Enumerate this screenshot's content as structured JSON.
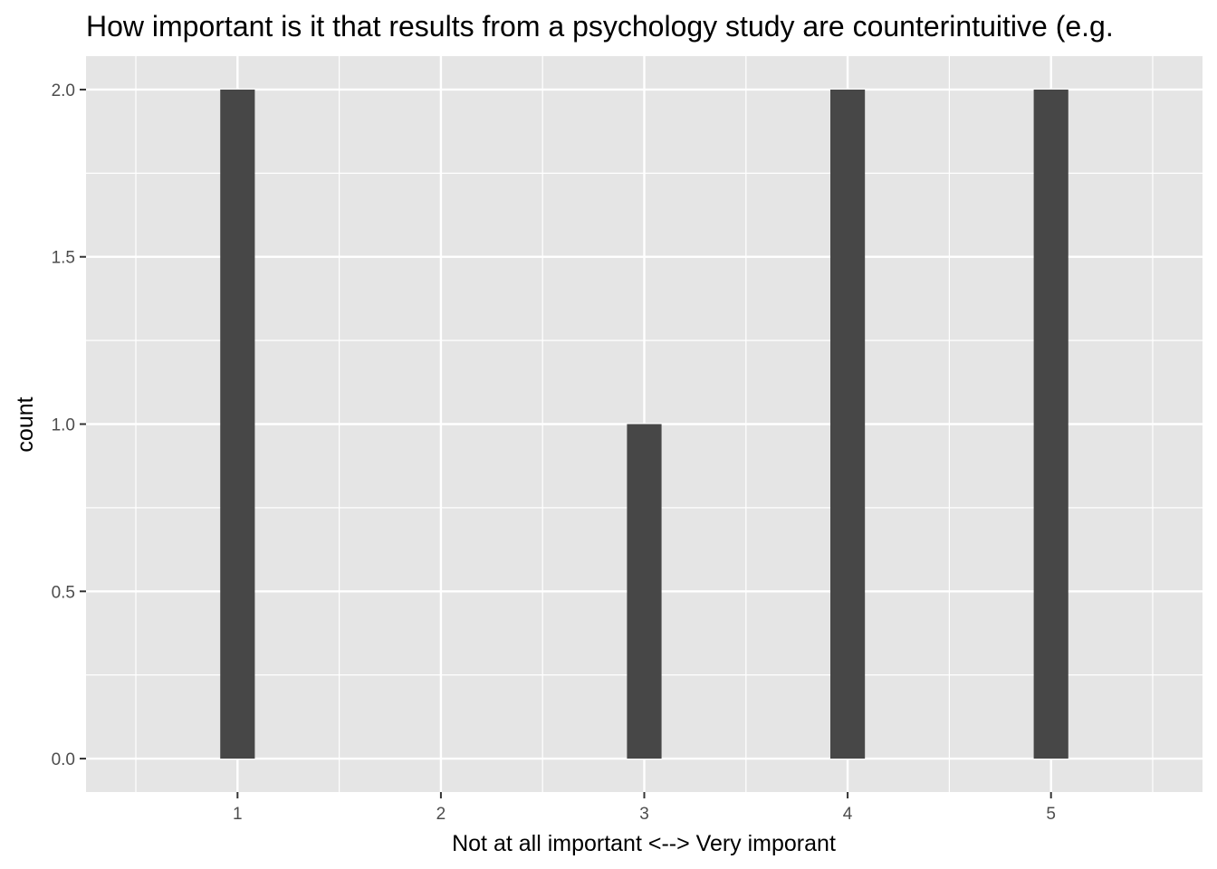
{
  "chart_data": {
    "type": "bar",
    "title": "How important is it that results from a psychology study are counterintuitive (e.g.",
    "xlabel": "Not at all important <--> Very imporant",
    "ylabel": "count",
    "x": [
      1,
      3,
      4,
      5
    ],
    "values": [
      2,
      1,
      2,
      2
    ],
    "xticks": [
      1,
      2,
      3,
      4,
      5
    ],
    "xtick_labels": [
      "1",
      "2",
      "3",
      "4",
      "5"
    ],
    "yticks": [
      0,
      0.5,
      1,
      1.5,
      2
    ],
    "ytick_labels": [
      "0.0",
      "0.5",
      "1.0",
      "1.5",
      "2.0"
    ],
    "xlim": [
      0.255,
      5.745
    ],
    "ylim": [
      -0.1,
      2.1
    ],
    "bar_width": 0.17,
    "grid": true,
    "colors": {
      "panel": "#e5e5e5",
      "bar": "#474747",
      "grid": "#ffffff",
      "tick_text": "#4d4d4d",
      "axis_text": "#000000"
    }
  }
}
